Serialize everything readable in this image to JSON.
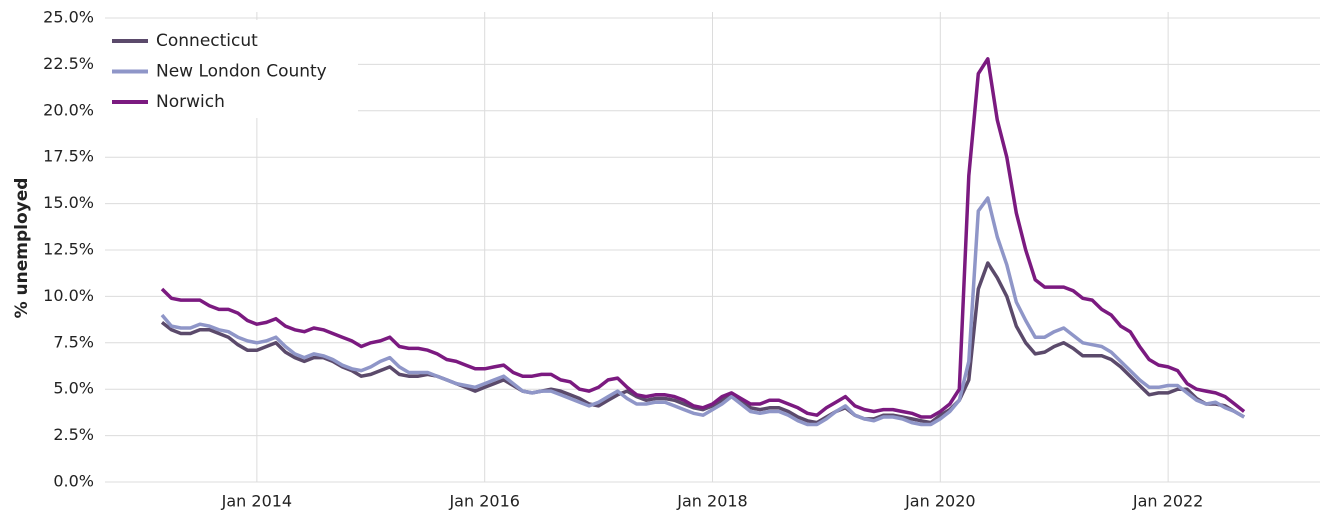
{
  "chart_data": {
    "type": "line",
    "y_label": "% unemployed",
    "x": [
      "2013-03",
      "2013-04",
      "2013-05",
      "2013-06",
      "2013-07",
      "2013-08",
      "2013-09",
      "2013-10",
      "2013-11",
      "2013-12",
      "2014-01",
      "2014-02",
      "2014-03",
      "2014-04",
      "2014-05",
      "2014-06",
      "2014-07",
      "2014-08",
      "2014-09",
      "2014-10",
      "2014-11",
      "2014-12",
      "2015-01",
      "2015-02",
      "2015-03",
      "2015-04",
      "2015-05",
      "2015-06",
      "2015-07",
      "2015-08",
      "2015-09",
      "2015-10",
      "2015-11",
      "2015-12",
      "2016-01",
      "2016-02",
      "2016-03",
      "2016-04",
      "2016-05",
      "2016-06",
      "2016-07",
      "2016-08",
      "2016-09",
      "2016-10",
      "2016-11",
      "2016-12",
      "2017-01",
      "2017-02",
      "2017-03",
      "2017-04",
      "2017-05",
      "2017-06",
      "2017-07",
      "2017-08",
      "2017-09",
      "2017-10",
      "2017-11",
      "2017-12",
      "2018-01",
      "2018-02",
      "2018-03",
      "2018-04",
      "2018-05",
      "2018-06",
      "2018-07",
      "2018-08",
      "2018-09",
      "2018-10",
      "2018-11",
      "2018-12",
      "2019-01",
      "2019-02",
      "2019-03",
      "2019-04",
      "2019-05",
      "2019-06",
      "2019-07",
      "2019-08",
      "2019-09",
      "2019-10",
      "2019-11",
      "2019-12",
      "2020-01",
      "2020-02",
      "2020-03",
      "2020-04",
      "2020-05",
      "2020-06",
      "2020-07",
      "2020-08",
      "2020-09",
      "2020-10",
      "2020-11",
      "2020-12",
      "2021-01",
      "2021-02",
      "2021-03",
      "2021-04",
      "2021-05",
      "2021-06",
      "2021-07",
      "2021-08",
      "2021-09",
      "2021-10",
      "2021-11",
      "2021-12",
      "2022-01",
      "2022-02",
      "2022-03",
      "2022-04",
      "2022-05",
      "2022-06",
      "2022-07",
      "2022-08",
      "2022-09"
    ],
    "series": [
      {
        "name": "Connecticut",
        "color": "#5b4a6b",
        "values": [
          8.6,
          8.2,
          8.0,
          8.0,
          8.2,
          8.2,
          8.0,
          7.8,
          7.4,
          7.1,
          7.1,
          7.3,
          7.5,
          7.0,
          6.7,
          6.5,
          6.7,
          6.7,
          6.5,
          6.2,
          6.0,
          5.7,
          5.8,
          6.0,
          6.2,
          5.8,
          5.7,
          5.7,
          5.8,
          5.7,
          5.5,
          5.3,
          5.1,
          4.9,
          5.1,
          5.3,
          5.5,
          5.2,
          4.9,
          4.8,
          4.9,
          5.0,
          4.9,
          4.7,
          4.5,
          4.2,
          4.1,
          4.4,
          4.7,
          4.9,
          4.6,
          4.4,
          4.5,
          4.5,
          4.4,
          4.2,
          4.0,
          3.9,
          4.1,
          4.4,
          4.7,
          4.4,
          4.0,
          3.9,
          4.0,
          4.0,
          3.8,
          3.5,
          3.3,
          3.2,
          3.5,
          3.8,
          4.0,
          3.6,
          3.4,
          3.4,
          3.6,
          3.6,
          3.5,
          3.4,
          3.3,
          3.2,
          3.6,
          3.9,
          4.4,
          5.5,
          10.4,
          11.8,
          11.0,
          10.0,
          8.4,
          7.5,
          6.9,
          7.0,
          7.3,
          7.5,
          7.2,
          6.8,
          6.8,
          6.8,
          6.6,
          6.2,
          5.7,
          5.2,
          4.7,
          4.8,
          4.8,
          5.0,
          5.0,
          4.5,
          4.2,
          4.2,
          4.1,
          3.8,
          3.5
        ]
      },
      {
        "name": "New London County",
        "color": "#8f96c8",
        "values": [
          9.0,
          8.4,
          8.3,
          8.3,
          8.5,
          8.4,
          8.2,
          8.1,
          7.8,
          7.6,
          7.5,
          7.6,
          7.8,
          7.3,
          6.9,
          6.7,
          6.9,
          6.8,
          6.6,
          6.3,
          6.1,
          6.0,
          6.2,
          6.5,
          6.7,
          6.2,
          5.9,
          5.9,
          5.9,
          5.7,
          5.5,
          5.3,
          5.2,
          5.1,
          5.3,
          5.5,
          5.7,
          5.3,
          4.9,
          4.8,
          4.9,
          4.9,
          4.7,
          4.5,
          4.3,
          4.1,
          4.3,
          4.6,
          4.9,
          4.5,
          4.2,
          4.2,
          4.3,
          4.3,
          4.1,
          3.9,
          3.7,
          3.6,
          3.9,
          4.2,
          4.6,
          4.2,
          3.8,
          3.7,
          3.8,
          3.8,
          3.6,
          3.3,
          3.1,
          3.1,
          3.4,
          3.8,
          4.1,
          3.6,
          3.4,
          3.3,
          3.5,
          3.5,
          3.4,
          3.2,
          3.1,
          3.1,
          3.4,
          3.8,
          4.4,
          6.5,
          14.6,
          15.3,
          13.2,
          11.7,
          9.7,
          8.7,
          7.8,
          7.8,
          8.1,
          8.3,
          7.9,
          7.5,
          7.4,
          7.3,
          7.0,
          6.5,
          6.0,
          5.5,
          5.1,
          5.1,
          5.2,
          5.2,
          4.8,
          4.4,
          4.2,
          4.3,
          4.0,
          3.8,
          3.5
        ]
      },
      {
        "name": "Norwich",
        "color": "#7b1a80",
        "values": [
          10.4,
          9.9,
          9.8,
          9.8,
          9.8,
          9.5,
          9.3,
          9.3,
          9.1,
          8.7,
          8.5,
          8.6,
          8.8,
          8.4,
          8.2,
          8.1,
          8.3,
          8.2,
          8.0,
          7.8,
          7.6,
          7.3,
          7.5,
          7.6,
          7.8,
          7.3,
          7.2,
          7.2,
          7.1,
          6.9,
          6.6,
          6.5,
          6.3,
          6.1,
          6.1,
          6.2,
          6.3,
          5.9,
          5.7,
          5.7,
          5.8,
          5.8,
          5.5,
          5.4,
          5.0,
          4.9,
          5.1,
          5.5,
          5.6,
          5.1,
          4.7,
          4.6,
          4.7,
          4.7,
          4.6,
          4.4,
          4.1,
          4.0,
          4.2,
          4.6,
          4.8,
          4.5,
          4.2,
          4.2,
          4.4,
          4.4,
          4.2,
          4.0,
          3.7,
          3.6,
          4.0,
          4.3,
          4.6,
          4.1,
          3.9,
          3.8,
          3.9,
          3.9,
          3.8,
          3.7,
          3.5,
          3.5,
          3.8,
          4.2,
          5.0,
          16.5,
          22.0,
          22.8,
          19.5,
          17.5,
          14.5,
          12.5,
          10.9,
          10.5,
          10.5,
          10.5,
          10.3,
          9.9,
          9.8,
          9.3,
          9.0,
          8.4,
          8.1,
          7.3,
          6.6,
          6.3,
          6.2,
          6.0,
          5.3,
          5.0,
          4.9,
          4.8,
          4.6,
          4.2,
          3.8
        ]
      }
    ],
    "xlim": [
      "2012-09",
      "2023-05"
    ],
    "xticks": [
      {
        "value": "2014-01",
        "label": "Jan 2014"
      },
      {
        "value": "2016-01",
        "label": "Jan 2016"
      },
      {
        "value": "2018-01",
        "label": "Jan 2018"
      },
      {
        "value": "2020-01",
        "label": "Jan 2020"
      },
      {
        "value": "2022-01",
        "label": "Jan 2022"
      }
    ],
    "ylim": [
      0,
      25
    ],
    "yticks": [
      {
        "value": 0,
        "label": "0.0%"
      },
      {
        "value": 2.5,
        "label": "2.5%"
      },
      {
        "value": 5,
        "label": "5.0%"
      },
      {
        "value": 7.5,
        "label": "7.5%"
      },
      {
        "value": 10,
        "label": "10.0%"
      },
      {
        "value": 12.5,
        "label": "12.5%"
      },
      {
        "value": 15,
        "label": "15.0%"
      },
      {
        "value": 17.5,
        "label": "17.5%"
      },
      {
        "value": 20,
        "label": "20.0%"
      },
      {
        "value": 22.5,
        "label": "22.5%"
      },
      {
        "value": 25,
        "label": "25.0%"
      }
    ],
    "grid": true,
    "legend": "upper left"
  }
}
